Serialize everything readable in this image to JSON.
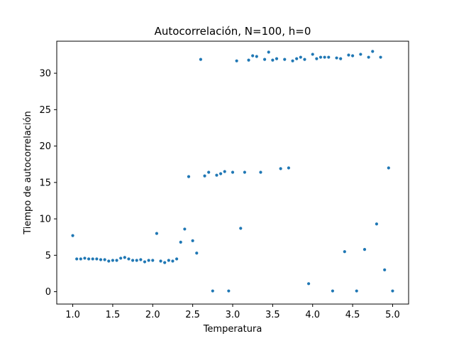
{
  "chart_data": {
    "type": "scatter",
    "title": "Autocorrelación, N=100, h=0",
    "xlabel": "Temperatura",
    "ylabel": "Tiempo de autocorrelación",
    "xlim": [
      0.8,
      5.2
    ],
    "ylim": [
      -1.7,
      34.4
    ],
    "xticks": [
      1.0,
      1.5,
      2.0,
      2.5,
      3.0,
      3.5,
      4.0,
      4.5,
      5.0
    ],
    "xtick_labels": [
      "1.0",
      "1.5",
      "2.0",
      "2.5",
      "3.0",
      "3.5",
      "4.0",
      "4.5",
      "5.0"
    ],
    "yticks": [
      0,
      5,
      10,
      15,
      20,
      25,
      30
    ],
    "ytick_labels": [
      "0",
      "5",
      "10",
      "15",
      "20",
      "25",
      "30"
    ],
    "grid": false,
    "marker_color": "#1f77b4",
    "series": [
      {
        "x": [
          1.0,
          1.05,
          1.1,
          1.15,
          1.2,
          1.25,
          1.3,
          1.35,
          1.4,
          1.45,
          1.5,
          1.55,
          1.6,
          1.65,
          1.7,
          1.75,
          1.8,
          1.85,
          1.9,
          1.95,
          2.0,
          2.05,
          2.1,
          2.15,
          2.2,
          2.25,
          2.3,
          2.35,
          2.4,
          2.45,
          2.5,
          2.55,
          2.6,
          2.65,
          2.7,
          2.75,
          2.8,
          2.85,
          2.9,
          2.95,
          3.0,
          3.05,
          3.1,
          3.15,
          3.2,
          3.25,
          3.3,
          3.35,
          3.4,
          3.45,
          3.5,
          3.55,
          3.6,
          3.65,
          3.7,
          3.75,
          3.8,
          3.85,
          3.9,
          3.95,
          4.0,
          4.05,
          4.1,
          4.15,
          4.2,
          4.25,
          4.3,
          4.35,
          4.4,
          4.45,
          4.5,
          4.55,
          4.6,
          4.65,
          4.7,
          4.75,
          4.8,
          4.85,
          4.9,
          4.95,
          5.0
        ],
        "y": [
          7.7,
          4.5,
          4.5,
          4.6,
          4.5,
          4.5,
          4.5,
          4.4,
          4.4,
          4.2,
          4.3,
          4.3,
          4.6,
          4.7,
          4.5,
          4.3,
          4.3,
          4.4,
          4.1,
          4.3,
          4.3,
          8.0,
          4.2,
          4.0,
          4.3,
          4.2,
          4.5,
          6.8,
          8.6,
          15.8,
          7.0,
          5.3,
          31.9,
          15.9,
          16.4,
          0.1,
          16.0,
          16.2,
          16.5,
          0.1,
          16.4,
          31.7,
          8.7,
          16.4,
          31.8,
          32.4,
          32.3,
          16.4,
          31.9,
          32.9,
          31.8,
          32.0,
          16.9,
          31.9,
          17.0,
          31.7,
          32.0,
          32.2,
          31.9,
          1.1,
          32.6,
          32.0,
          32.2,
          32.2,
          32.2,
          0.1,
          32.1,
          32.0,
          5.5,
          32.5,
          32.4,
          0.1,
          32.6,
          5.8,
          32.2,
          33.0,
          9.3,
          32.2,
          3.0,
          17.0,
          0.1
        ]
      }
    ]
  }
}
